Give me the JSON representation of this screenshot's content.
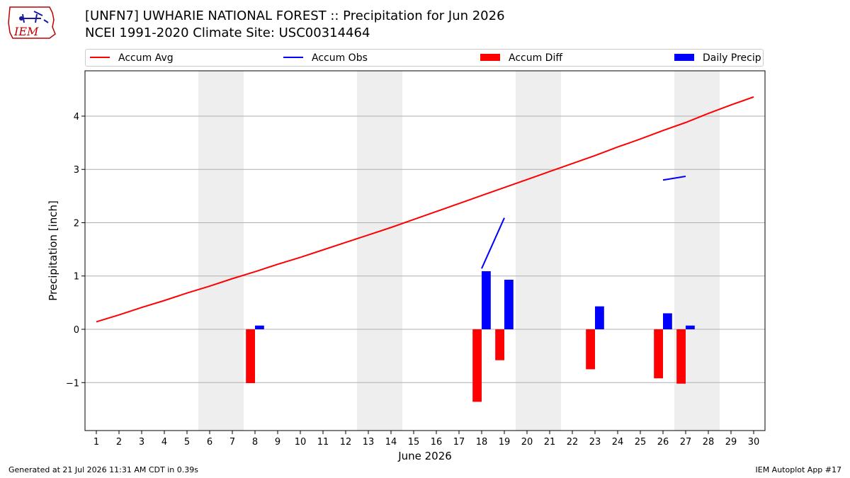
{
  "header": {
    "title_line1": "[UNFN7] UWHARIE NATIONAL FOREST :: Precipitation for Jun 2026",
    "title_line2": "NCEI 1991-2020 Climate Site: USC00314464",
    "logo_text": "IEM"
  },
  "footer": {
    "generated": "Generated at 21 Jul 2026 11:31 AM CDT in 0.39s",
    "app": "IEM Autoplot App #17"
  },
  "colors": {
    "avg": "#ff0000",
    "obs": "#0000ff",
    "diff": "#ff0000",
    "daily": "#0000ff",
    "weekend_shade": "#eeeeee",
    "grid": "#b0b0b0"
  },
  "chart_data": {
    "type": "bar",
    "title": "[UNFN7] UWHARIE NATIONAL FOREST :: Precipitation for Jun 2026",
    "subtitle": "NCEI 1991-2020 Climate Site: USC00314464",
    "xlabel": "June 2026",
    "ylabel": "Precipitation [inch]",
    "x": [
      1,
      2,
      3,
      4,
      5,
      6,
      7,
      8,
      9,
      10,
      11,
      12,
      13,
      14,
      15,
      16,
      17,
      18,
      19,
      20,
      21,
      22,
      23,
      24,
      25,
      26,
      27,
      28,
      29,
      30
    ],
    "xlim": [
      0.5,
      30.5
    ],
    "ylim": [
      -1.9,
      4.85
    ],
    "yticks": [
      -1,
      0,
      1,
      2,
      3,
      4
    ],
    "ytick_labels": [
      "−1",
      "0",
      "1",
      "2",
      "3",
      "4"
    ],
    "grid": "horizontal",
    "legend_position": "top",
    "legend": [
      "Accum Avg",
      "Accum Obs",
      "Accum Diff",
      "Daily Precip"
    ],
    "weekend_spans": [
      [
        6,
        7
      ],
      [
        13,
        14
      ],
      [
        20,
        21
      ],
      [
        27,
        28
      ]
    ],
    "series": [
      {
        "name": "Accum Avg",
        "type": "line",
        "color": "#ff0000",
        "x": [
          1,
          2,
          3,
          4,
          5,
          6,
          7,
          8,
          9,
          10,
          11,
          12,
          13,
          14,
          15,
          16,
          17,
          18,
          19,
          20,
          21,
          22,
          23,
          24,
          25,
          26,
          27,
          28,
          29,
          30
        ],
        "values": [
          0.14,
          0.27,
          0.41,
          0.54,
          0.68,
          0.81,
          0.95,
          1.08,
          1.22,
          1.35,
          1.49,
          1.63,
          1.77,
          1.91,
          2.06,
          2.21,
          2.36,
          2.51,
          2.66,
          2.81,
          2.96,
          3.11,
          3.26,
          3.42,
          3.57,
          3.73,
          3.88,
          4.05,
          4.21,
          4.36
        ]
      },
      {
        "name": "Accum Obs",
        "type": "line",
        "color": "#0000ff",
        "segments": [
          {
            "x": [
              18,
              19
            ],
            "values": [
              1.14,
              2.09
            ]
          },
          {
            "x": [
              26,
              27
            ],
            "values": [
              2.8,
              2.87
            ]
          }
        ]
      },
      {
        "name": "Accum Diff",
        "type": "bar",
        "color": "#ff0000",
        "x": [
          8,
          18,
          19,
          23,
          26,
          27
        ],
        "values": [
          -1.01,
          -1.36,
          -0.58,
          -0.75,
          -0.92,
          -1.02
        ]
      },
      {
        "name": "Daily Precip",
        "type": "bar",
        "color": "#0000ff",
        "x": [
          8,
          18,
          19,
          23,
          26,
          27
        ],
        "values": [
          0.07,
          1.09,
          0.93,
          0.43,
          0.3,
          0.07
        ]
      }
    ]
  }
}
